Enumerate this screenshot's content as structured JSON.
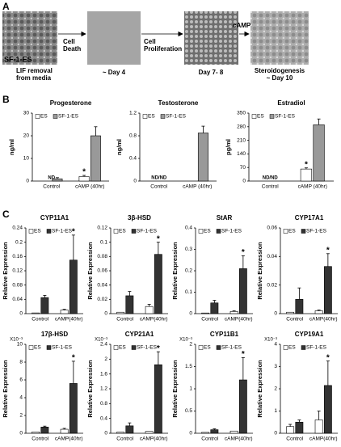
{
  "panel_labels": [
    "A",
    "B",
    "C"
  ],
  "panel_a": {
    "image_label": "SF-1-ES",
    "captions": [
      "LIF removal",
      "from media",
      "~ Day 4",
      "Day 7- 8",
      "Steroidogenesis",
      "~ Day 10"
    ],
    "steps": [
      "Cell",
      "Death",
      "Cell",
      "Proliferation",
      "cAMP"
    ]
  },
  "chart_data": [
    {
      "type": "bar",
      "title": "Progesterone",
      "ylabel": "ng/ml",
      "categories": [
        "Control",
        "cAMP (40hr)"
      ],
      "series": [
        {
          "name": "ES",
          "color": "#ffffff",
          "values": [
            null,
            2
          ],
          "errors": [
            null,
            0.5
          ],
          "marks": [
            null,
            "*"
          ]
        },
        {
          "name": "SF-1-ES",
          "color": "#999999",
          "values": [
            1,
            20
          ],
          "errors": [
            0.5,
            4
          ],
          "marks": [
            null,
            null
          ]
        }
      ],
      "annotations": [
        {
          "text": "ND",
          "category": "Control"
        }
      ],
      "ylim": [
        0,
        30
      ],
      "yticks": [
        0,
        10,
        20,
        30
      ]
    },
    {
      "type": "bar",
      "title": "Testosterone",
      "ylabel": "ng/ml",
      "categories": [
        "Control",
        "cAMP (40hr)"
      ],
      "series": [
        {
          "name": "ES",
          "color": "#ffffff",
          "values": [
            null,
            null
          ],
          "errors": [
            null,
            null
          ],
          "marks": [
            null,
            null
          ]
        },
        {
          "name": "SF-1-ES",
          "color": "#999999",
          "values": [
            null,
            0.85
          ],
          "errors": [
            null,
            0.12
          ],
          "marks": [
            null,
            null
          ]
        }
      ],
      "annotations": [
        {
          "text": "ND/ND",
          "category": "Control"
        }
      ],
      "ylim": [
        0,
        1.2
      ],
      "yticks": [
        0,
        0.4,
        0.8,
        1.2
      ]
    },
    {
      "type": "bar",
      "title": "Estradiol",
      "ylabel": "pg/ml",
      "categories": [
        "Control",
        "cAMP (40hr)"
      ],
      "series": [
        {
          "name": "ES",
          "color": "#ffffff",
          "values": [
            null,
            62
          ],
          "errors": [
            null,
            6
          ],
          "marks": [
            null,
            "*"
          ]
        },
        {
          "name": "SF-1-ES",
          "color": "#999999",
          "values": [
            null,
            290
          ],
          "errors": [
            null,
            30
          ],
          "marks": [
            null,
            null
          ]
        }
      ],
      "annotations": [
        {
          "text": "ND/ND",
          "category": "Control"
        }
      ],
      "ylim": [
        0,
        350
      ],
      "yticks": [
        0,
        70,
        140,
        210,
        280,
        350
      ]
    },
    {
      "type": "bar",
      "title": "CYP11A1",
      "ylabel": "Relative Expression",
      "categories": [
        "Control",
        "cAMP(40hr)"
      ],
      "series": [
        {
          "name": "ES",
          "color": "#ffffff",
          "values": [
            0.002,
            0.01
          ],
          "errors": [
            null,
            0.002
          ],
          "marks": [
            null,
            null
          ]
        },
        {
          "name": "SF-1-ES",
          "color": "#333333",
          "values": [
            0.045,
            0.15
          ],
          "errors": [
            0.006,
            0.07
          ],
          "marks": [
            null,
            "*"
          ]
        }
      ],
      "ylim": [
        0,
        0.24
      ],
      "yticks": [
        0,
        0.04,
        0.08,
        0.12,
        0.16,
        0.2,
        0.24
      ]
    },
    {
      "type": "bar",
      "title": "3β-HSD",
      "ylabel": "Relative Expression",
      "categories": [
        "Control",
        "cAMP(40hr)"
      ],
      "series": [
        {
          "name": "ES",
          "color": "#ffffff",
          "values": [
            0.002,
            0.01
          ],
          "errors": [
            null,
            0.003
          ],
          "marks": [
            null,
            null
          ]
        },
        {
          "name": "SF-1-ES",
          "color": "#333333",
          "values": [
            0.025,
            0.083
          ],
          "errors": [
            0.006,
            0.017
          ],
          "marks": [
            null,
            "*"
          ]
        }
      ],
      "ylim": [
        0,
        0.12
      ],
      "yticks": [
        0,
        0.02,
        0.04,
        0.06,
        0.08,
        0.1,
        0.12
      ]
    },
    {
      "type": "bar",
      "title": "StAR",
      "ylabel": "Relative Expression",
      "categories": [
        "Control",
        "cAMP(40hr)"
      ],
      "series": [
        {
          "name": "ES",
          "color": "#ffffff",
          "values": [
            0.003,
            0.01
          ],
          "errors": [
            null,
            0.003
          ],
          "marks": [
            null,
            null
          ]
        },
        {
          "name": "SF-1-ES",
          "color": "#333333",
          "values": [
            0.05,
            0.21
          ],
          "errors": [
            0.012,
            0.06
          ],
          "marks": [
            null,
            "*"
          ]
        }
      ],
      "ylim": [
        0,
        0.4
      ],
      "yticks": [
        0,
        0.1,
        0.2,
        0.3,
        0.4
      ]
    },
    {
      "type": "bar",
      "title": "CYP17A1",
      "ylabel": "Relative Expression",
      "categories": [
        "Control",
        "cAMP(40hr)"
      ],
      "series": [
        {
          "name": "ES",
          "color": "#ffffff",
          "values": [
            0.001,
            0.002
          ],
          "errors": [
            null,
            0.0005
          ],
          "marks": [
            null,
            null
          ]
        },
        {
          "name": "SF-1-ES",
          "color": "#333333",
          "values": [
            0.01,
            0.033
          ],
          "errors": [
            0.008,
            0.009
          ],
          "marks": [
            null,
            "*"
          ]
        }
      ],
      "ylim": [
        0,
        0.06
      ],
      "yticks": [
        0,
        0.02,
        0.04,
        0.06
      ]
    },
    {
      "type": "bar",
      "title": "17β-HSD",
      "ylabel": "Relative Expression",
      "scale_label": "X10⁻³",
      "categories": [
        "Control",
        "cAMP(40hr)"
      ],
      "series": [
        {
          "name": "ES",
          "color": "#ffffff",
          "values": [
            0.15,
            0.45
          ],
          "errors": [
            null,
            0.1
          ],
          "marks": [
            null,
            null
          ]
        },
        {
          "name": "SF-1-ES",
          "color": "#333333",
          "values": [
            0.7,
            5.6
          ],
          "errors": [
            0.1,
            2.5
          ],
          "marks": [
            null,
            "*"
          ]
        }
      ],
      "ylim": [
        0,
        10
      ],
      "yticks": [
        0,
        2,
        4,
        6,
        8,
        10
      ]
    },
    {
      "type": "bar",
      "title": "CYP21A1",
      "ylabel": "Relative Expression",
      "scale_label": "X10⁻³",
      "categories": [
        "Control",
        "cAMP(40hr)"
      ],
      "series": [
        {
          "name": "ES",
          "color": "#ffffff",
          "values": [
            0.03,
            0.05
          ],
          "errors": [
            null,
            null
          ],
          "marks": [
            null,
            null
          ]
        },
        {
          "name": "SF-1-ES",
          "color": "#333333",
          "values": [
            0.2,
            1.85
          ],
          "errors": [
            0.08,
            0.35
          ],
          "marks": [
            null,
            "*"
          ]
        }
      ],
      "ylim": [
        0,
        2.4
      ],
      "yticks": [
        0,
        0.4,
        0.8,
        1.2,
        1.6,
        2,
        2.4
      ]
    },
    {
      "type": "bar",
      "title": "CYP11B1",
      "ylabel": "Relative Expression",
      "scale_label": "X10⁻³",
      "categories": [
        "Control",
        "cAMP(40hr)"
      ],
      "series": [
        {
          "name": "ES",
          "color": "#ffffff",
          "values": [
            0.02,
            0.05
          ],
          "errors": [
            null,
            null
          ],
          "marks": [
            null,
            null
          ]
        },
        {
          "name": "SF-1-ES",
          "color": "#333333",
          "values": [
            0.08,
            1.2
          ],
          "errors": [
            0.02,
            0.5
          ],
          "marks": [
            null,
            "*"
          ]
        }
      ],
      "ylim": [
        0,
        2
      ],
      "yticks": [
        0,
        0.5,
        1,
        1.5,
        2
      ]
    },
    {
      "type": "bar",
      "title": "CYP19A1",
      "ylabel": "Relative Expression",
      "scale_label": "X10⁻³",
      "categories": [
        "Control",
        "cAMP(40hr)"
      ],
      "series": [
        {
          "name": "ES",
          "color": "#ffffff",
          "values": [
            0.3,
            0.6
          ],
          "errors": [
            0.1,
            0.4
          ],
          "marks": [
            null,
            null
          ]
        },
        {
          "name": "SF-1-ES",
          "color": "#333333",
          "values": [
            0.5,
            2.15
          ],
          "errors": [
            0.1,
            1.1
          ],
          "marks": [
            null,
            "*"
          ]
        }
      ],
      "ylim": [
        0,
        4
      ],
      "yticks": [
        0,
        1,
        2,
        3,
        4
      ]
    }
  ]
}
